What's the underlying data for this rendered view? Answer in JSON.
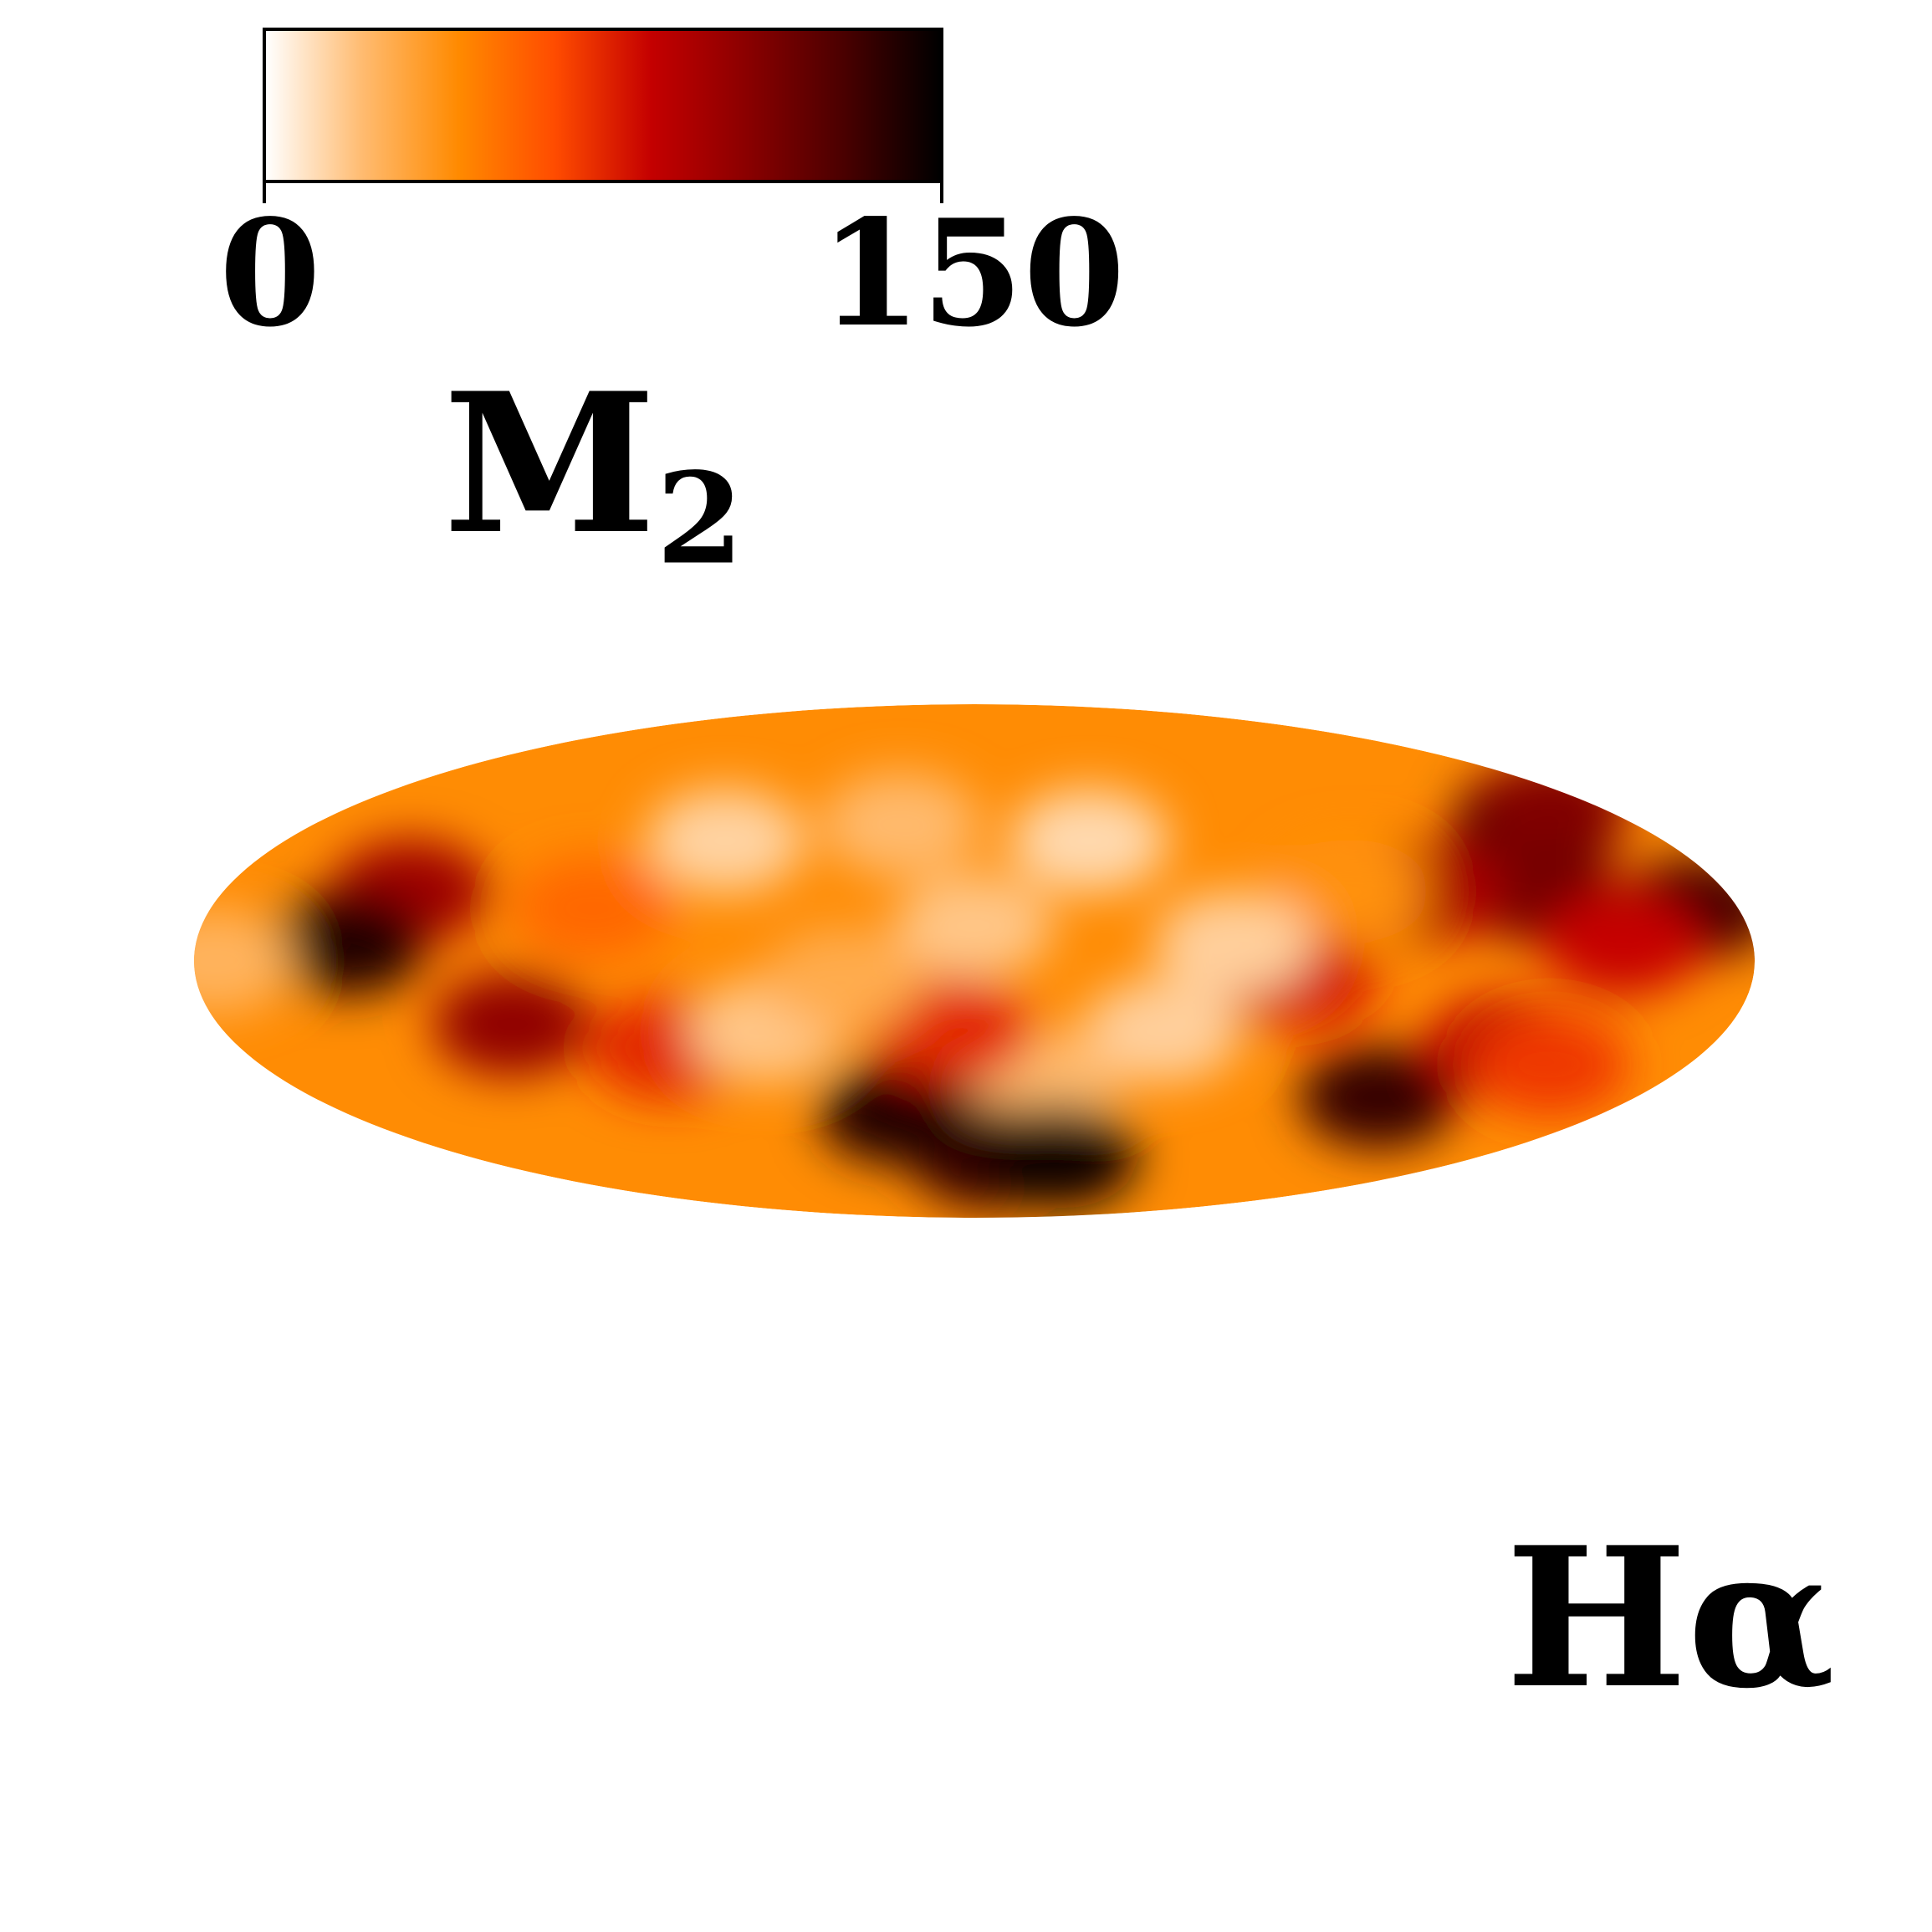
{
  "colorbar": {
    "min_label": "0",
    "max_label": "150",
    "range": [
      0,
      150
    ],
    "colormap": [
      "#ffffff",
      "#ffbb70",
      "#ff8a00",
      "#ff4c00",
      "#c40000",
      "#8a0000",
      "#4a0000",
      "#000000"
    ]
  },
  "quantity": {
    "main": "M",
    "subscript": "2"
  },
  "band_label": "Hα",
  "map": {
    "projection": "mollweide",
    "scale": "linear",
    "blobs": [
      {
        "lon": 155,
        "lat": 42,
        "value": 150
      },
      {
        "lon": 140,
        "lat": 30,
        "value": 150
      },
      {
        "lon": 170,
        "lat": 15,
        "value": 130
      },
      {
        "lon": 165,
        "lat": 45,
        "value": 110
      },
      {
        "lon": 135,
        "lat": 20,
        "value": 115
      },
      {
        "lon": 108,
        "lat": 20,
        "value": 95
      },
      {
        "lon": 75,
        "lat": -5,
        "value": 80
      },
      {
        "lon": 90,
        "lat": 20,
        "value": 40
      },
      {
        "lon": 30,
        "lat": 35,
        "value": 12
      },
      {
        "lon": 60,
        "lat": 5,
        "value": 15
      },
      {
        "lon": 0,
        "lat": 10,
        "value": 18
      },
      {
        "lon": -20,
        "lat": 40,
        "value": 22
      },
      {
        "lon": -65,
        "lat": 35,
        "value": 14
      },
      {
        "lon": -90,
        "lat": 15,
        "value": 55
      },
      {
        "lon": -135,
        "lat": 20,
        "value": 100
      },
      {
        "lon": -145,
        "lat": 5,
        "value": 140
      },
      {
        "lon": -110,
        "lat": -18,
        "value": 105
      },
      {
        "lon": -75,
        "lat": -25,
        "value": 75
      },
      {
        "lon": -175,
        "lat": 0,
        "value": 25
      },
      {
        "lon": 45,
        "lat": -20,
        "value": 15
      },
      {
        "lon": 18,
        "lat": -35,
        "value": 22
      },
      {
        "lon": 5,
        "lat": -60,
        "value": 135
      },
      {
        "lon": 30,
        "lat": -60,
        "value": 145
      },
      {
        "lon": -22,
        "lat": -45,
        "value": 140
      },
      {
        "lon": -5,
        "lat": -20,
        "value": 75
      },
      {
        "lon": 110,
        "lat": -40,
        "value": 135
      },
      {
        "lon": 130,
        "lat": -25,
        "value": 90
      },
      {
        "lon": 145,
        "lat": -30,
        "value": 70
      },
      {
        "lon": 150,
        "lat": 5,
        "value": 85
      },
      {
        "lon": -50,
        "lat": -20,
        "value": 18
      },
      {
        "lon": -30,
        "lat": -5,
        "value": 28
      }
    ],
    "background_value": 42
  }
}
